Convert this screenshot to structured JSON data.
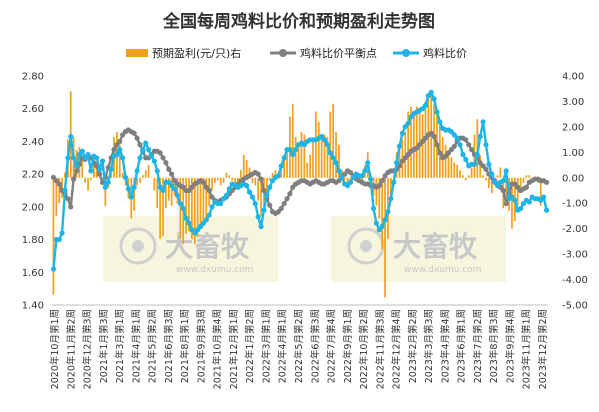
{
  "chart_data": {
    "type": "bar+line",
    "title": "全国每周鸡料比价和预期盈利走势图",
    "legend": [
      {
        "name": "预期盈利(元/只)右",
        "color": "#F0A020",
        "kind": "bar"
      },
      {
        "name": "鸡料比价平衡点",
        "color": "#7F7F7F",
        "kind": "line"
      },
      {
        "name": "鸡料比价",
        "color": "#1EB4E6",
        "kind": "line"
      }
    ],
    "legend_position": "top",
    "y_left": {
      "min": 1.4,
      "max": 2.8,
      "ticks": [
        "1.40",
        "1.60",
        "1.80",
        "2.00",
        "2.20",
        "2.40",
        "2.60",
        "2.80"
      ]
    },
    "y_right": {
      "min": -5.0,
      "max": 4.0,
      "ticks": [
        "4.00",
        "3.00",
        "2.00",
        "1.00",
        "0.00",
        "-1.00",
        "-2.00",
        "-3.00",
        "-4.00",
        "-5.00"
      ]
    },
    "x_tick_labels": [
      "2020年10月第1周",
      "2020年11月第2周",
      "2020年12月第3周",
      "2021年1月第3周",
      "2021年3月第1周",
      "2021年4月第1周",
      "2021年5月第2周",
      "2021年6月第3周",
      "2021年8月第1周",
      "2021年9月第3周",
      "2021年10月第4周",
      "2021年12月第1周",
      "2022年1月第2周",
      "2022年3月第1周",
      "2022年4月第1周",
      "2022年5月第2周",
      "2022年6月第3周",
      "2022年7月第4周",
      "2022年9月第1周",
      "2022年10月第2周",
      "2022年11月第3周",
      "2022年12月第4周",
      "2023年2月第2周",
      "2023年3月第3周",
      "2023年4月第4周",
      "2023年6月第1周",
      "2023年7月第2周",
      "2023年8月第3周",
      "2023年9月第4周",
      "2023年11月第1周",
      "2023年12月第2周"
    ],
    "series": [
      {
        "name": "鸡料比价",
        "color": "#1EB4E6",
        "axis": "left",
        "values": [
          1.62,
          1.8,
          1.8,
          1.84,
          2.1,
          2.3,
          2.43,
          2.3,
          2.25,
          2.32,
          2.34,
          2.3,
          2.32,
          2.22,
          2.31,
          2.3,
          2.23,
          2.28,
          2.12,
          2.15,
          2.23,
          2.31,
          2.32,
          2.35,
          2.3,
          2.18,
          2.11,
          2.06,
          2.12,
          2.22,
          2.3,
          2.35,
          2.39,
          2.35,
          2.31,
          2.28,
          2.22,
          2.12,
          2.1,
          2.15,
          2.15,
          2.13,
          2.11,
          2.07,
          2.02,
          1.99,
          1.93,
          1.9,
          1.86,
          1.84,
          1.86,
          1.88,
          1.9,
          1.92,
          1.95,
          2.0,
          2.03,
          2.02,
          2.02,
          2.05,
          2.07,
          2.11,
          2.14,
          2.13,
          2.12,
          2.13,
          2.14,
          2.13,
          2.09,
          2.06,
          2.02,
          1.94,
          1.88,
          1.98,
          2.07,
          2.12,
          2.16,
          2.18,
          2.19,
          2.25,
          2.3,
          2.35,
          2.35,
          2.32,
          2.35,
          2.38,
          2.39,
          2.38,
          2.4,
          2.41,
          2.41,
          2.41,
          2.42,
          2.43,
          2.41,
          2.38,
          2.33,
          2.3,
          2.27,
          2.22,
          2.18,
          2.14,
          2.13,
          2.15,
          2.18,
          2.2,
          2.19,
          2.19,
          2.22,
          2.27,
          2.17,
          1.99,
          1.9,
          1.86,
          1.88,
          1.92,
          1.97,
          2.05,
          2.15,
          2.27,
          2.37,
          2.45,
          2.49,
          2.51,
          2.55,
          2.57,
          2.58,
          2.59,
          2.6,
          2.62,
          2.68,
          2.7,
          2.66,
          2.58,
          2.52,
          2.48,
          2.47,
          2.47,
          2.46,
          2.44,
          2.42,
          2.38,
          2.32,
          2.29,
          2.25,
          2.26,
          2.26,
          2.32,
          2.43,
          2.52,
          2.38,
          2.26,
          2.2,
          2.15,
          2.13,
          2.15,
          2.16,
          2.22,
          2.05,
          2.06,
          2.04,
          1.98,
          1.99,
          2.02,
          2.04,
          2.03,
          2.06,
          2.05,
          2.05,
          2.04,
          2.06,
          1.98
        ]
      },
      {
        "name": "鸡料比价平衡点",
        "color": "#7F7F7F",
        "axis": "left",
        "values": [
          2.18,
          2.16,
          2.14,
          2.1,
          2.08,
          2.05,
          2.0,
          2.17,
          2.22,
          2.26,
          2.3,
          2.29,
          2.31,
          2.3,
          2.27,
          2.25,
          2.2,
          2.15,
          2.18,
          2.24,
          2.3,
          2.35,
          2.38,
          2.4,
          2.44,
          2.46,
          2.47,
          2.46,
          2.45,
          2.42,
          2.38,
          2.34,
          2.3,
          2.3,
          2.32,
          2.34,
          2.34,
          2.33,
          2.3,
          2.27,
          2.23,
          2.2,
          2.16,
          2.14,
          2.13,
          2.12,
          2.1,
          2.1,
          2.12,
          2.14,
          2.15,
          2.16,
          2.15,
          2.12,
          2.1,
          2.06,
          2.04,
          2.03,
          2.04,
          2.05,
          2.06,
          2.08,
          2.1,
          2.12,
          2.14,
          2.16,
          2.17,
          2.18,
          2.19,
          2.2,
          2.21,
          2.2,
          2.17,
          2.1,
          2.05,
          2.01,
          1.97,
          1.96,
          1.97,
          1.99,
          2.02,
          2.05,
          2.08,
          2.12,
          2.14,
          2.15,
          2.16,
          2.16,
          2.15,
          2.14,
          2.15,
          2.16,
          2.15,
          2.14,
          2.14,
          2.15,
          2.16,
          2.16,
          2.15,
          2.16,
          2.18,
          2.2,
          2.22,
          2.21,
          2.19,
          2.17,
          2.16,
          2.15,
          2.14,
          2.14,
          2.13,
          2.13,
          2.12,
          2.13,
          2.16,
          2.19,
          2.21,
          2.22,
          2.22,
          2.23,
          2.25,
          2.28,
          2.3,
          2.32,
          2.34,
          2.35,
          2.36,
          2.38,
          2.4,
          2.42,
          2.44,
          2.45,
          2.43,
          2.38,
          2.33,
          2.3,
          2.31,
          2.33,
          2.35,
          2.37,
          2.4,
          2.42,
          2.42,
          2.41,
          2.38,
          2.35,
          2.32,
          2.3,
          2.27,
          2.25,
          2.23,
          2.2,
          2.18,
          2.16,
          2.14,
          2.12,
          2.1,
          2.02,
          2.08,
          2.14,
          2.14,
          2.12,
          2.1,
          2.11,
          2.12,
          2.15,
          2.16,
          2.17,
          2.17,
          2.16,
          2.16,
          2.15
        ]
      },
      {
        "name": "预期盈利(元/只)右",
        "color": "#F0A020",
        "axis": "right",
        "type": "bar",
        "values": [
          -4.6,
          -1.5,
          -1.0,
          -0.8,
          0.2,
          1.5,
          3.4,
          1.6,
          1.1,
          1.2,
          0.8,
          -0.2,
          -0.5,
          -0.1,
          0.9,
          0.6,
          0.0,
          -0.3,
          -1.1,
          -0.4,
          0.2,
          1.6,
          1.8,
          1.3,
          0.2,
          -0.3,
          -0.8,
          -1.6,
          -1.3,
          -0.3,
          -0.2,
          0.1,
          0.3,
          0.5,
          0.0,
          -0.5,
          -1.2,
          -2.4,
          -2.3,
          -1.2,
          -0.9,
          -1.1,
          -0.7,
          -1.0,
          -2.4,
          -2.6,
          -2.2,
          -2.1,
          -2.4,
          -2.6,
          -2.3,
          -1.9,
          -1.7,
          -1.6,
          -1.1,
          -0.5,
          -0.2,
          -0.1,
          -0.3,
          -0.2,
          0.2,
          0.1,
          -0.1,
          -0.2,
          -0.4,
          0.3,
          0.9,
          0.7,
          0.4,
          -0.2,
          -0.3,
          -0.9,
          -1.5,
          -1.2,
          -0.8,
          -0.1,
          0.2,
          0.3,
          0.1,
          0.5,
          0.8,
          1.2,
          2.4,
          2.9,
          1.6,
          1.2,
          1.8,
          1.7,
          0.6,
          0.9,
          1.5,
          2.6,
          2.2,
          1.6,
          1.7,
          1.6,
          2.6,
          2.9,
          1.8,
          1.3,
          0.3,
          -0.1,
          -0.3,
          -0.2,
          0.1,
          0.0,
          -0.1,
          -0.1,
          0.5,
          1.0,
          0.2,
          -0.7,
          -1.1,
          -1.6,
          -2.8,
          -4.7,
          -2.4,
          -0.9,
          0.0,
          1.0,
          1.3,
          1.5,
          1.8,
          2.6,
          2.8,
          2.6,
          2.8,
          2.7,
          2.5,
          3.0,
          3.2,
          3.3,
          2.9,
          2.5,
          2.1,
          1.6,
          1.3,
          1.0,
          0.8,
          0.6,
          0.5,
          0.3,
          0.1,
          -0.1,
          0.1,
          0.4,
          1.7,
          2.3,
          0.9,
          0.1,
          -0.1,
          -0.4,
          -0.6,
          -0.3,
          0.1,
          0.4,
          -1.2,
          -1.0,
          -1.3,
          -2.0,
          -1.7,
          -1.1,
          -0.5,
          -0.2,
          0.1,
          0.1,
          0.0,
          0.0,
          -0.2,
          -1.1
        ]
      }
    ],
    "watermark": {
      "brand": "大畜牧",
      "site": "www.dxumu.com"
    }
  }
}
